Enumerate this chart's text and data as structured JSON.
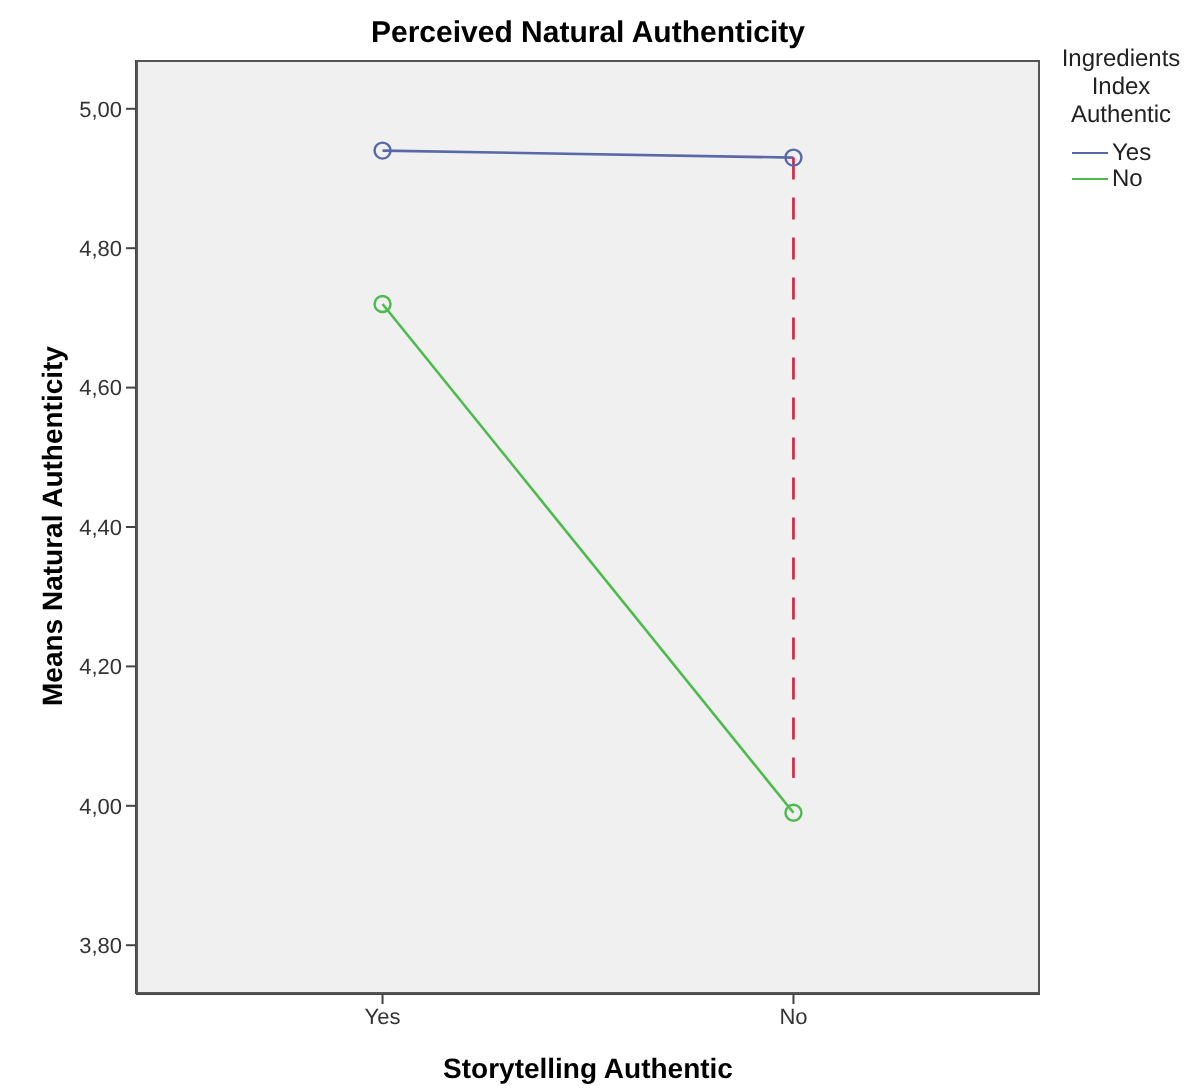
{
  "chart_data": {
    "type": "line",
    "title": "Perceived Natural Authenticity",
    "xlabel": "Storytelling Authentic",
    "ylabel": "Means Natural Authenticity",
    "legend_title": "Ingredients Index Authentic",
    "categories": [
      "Yes",
      "No"
    ],
    "series": [
      {
        "name": "Yes",
        "color": "#5868a8",
        "values": [
          4.94,
          4.93
        ]
      },
      {
        "name": "No",
        "color": "#4cbb4c",
        "values": [
          4.72,
          3.99
        ]
      },
      {
        "type": "line",
        "color": "#d8203c",
        "x": [
          "No",
          "No"
        ],
        "values": [
          4.93,
          4.04
        ],
        "line_style": "dashed",
        "marker": "none"
      }
    ],
    "ylim": [
      3.73,
      5.07
    ],
    "yticks": [
      {
        "value": 3.8,
        "label": "3,80"
      },
      {
        "value": 4.0,
        "label": "4,00"
      },
      {
        "value": 4.2,
        "label": "4,20"
      },
      {
        "value": 4.4,
        "label": "4,40"
      },
      {
        "value": 4.6,
        "label": "4,60"
      },
      {
        "value": 4.8,
        "label": "4,80"
      },
      {
        "value": 5.0,
        "label": "5,00"
      }
    ],
    "marker": "circle",
    "line_style": "solid",
    "legend": "top right"
  }
}
